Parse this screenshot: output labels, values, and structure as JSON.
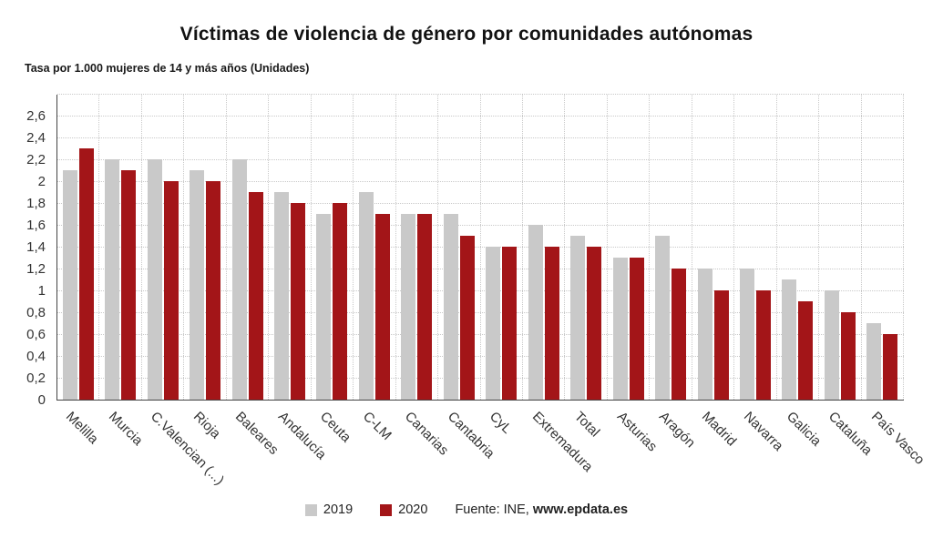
{
  "chart": {
    "title": "Víctimas de violencia de género por comunidades autónomas",
    "subtitle": "Tasa por 1.000 mujeres de 14 y más años (Unidades)"
  },
  "chart_data": {
    "type": "bar",
    "title": "Víctimas de violencia de género por comunidades autónomas",
    "subtitle": "Tasa por 1.000 mujeres de 14 y más años (Unidades)",
    "categories": [
      "Melilla",
      "Murcia",
      "C.Valencian (...)",
      "Rioja",
      "Baleares",
      "Andalucía",
      "Ceuta",
      "C-LM",
      "Canarias",
      "Cantabria",
      "CyL",
      "Extremadura",
      "Total",
      "Asturias",
      "Aragón",
      "Madrid",
      "Navarra",
      "Galicia",
      "Cataluña",
      "País Vasco"
    ],
    "series": [
      {
        "name": "2019",
        "color": "#c9c9c9",
        "values": [
          2.1,
          2.2,
          2.2,
          2.1,
          2.2,
          1.9,
          1.7,
          1.9,
          1.7,
          1.7,
          1.4,
          1.6,
          1.5,
          1.3,
          1.5,
          1.2,
          1.2,
          1.1,
          1.0,
          0.7
        ]
      },
      {
        "name": "2020",
        "color": "#a31518",
        "values": [
          2.3,
          2.1,
          2.0,
          2.0,
          1.9,
          1.8,
          1.8,
          1.7,
          1.7,
          1.5,
          1.4,
          1.4,
          1.4,
          1.3,
          1.2,
          1.0,
          1.0,
          0.9,
          0.8,
          0.6
        ]
      }
    ],
    "ylim": [
      0,
      2.8
    ],
    "ytick_step": 0.2,
    "ytick_labels": [
      "0",
      "0,2",
      "0,4",
      "0,6",
      "0,8",
      "1",
      "1,2",
      "1,4",
      "1,6",
      "1,8",
      "2",
      "2,2",
      "2,4",
      "2,6"
    ],
    "grid": "dotted",
    "legend_position": "bottom"
  },
  "source": {
    "prefix": "Fuente: INE,",
    "site": "www.epdata.es"
  }
}
